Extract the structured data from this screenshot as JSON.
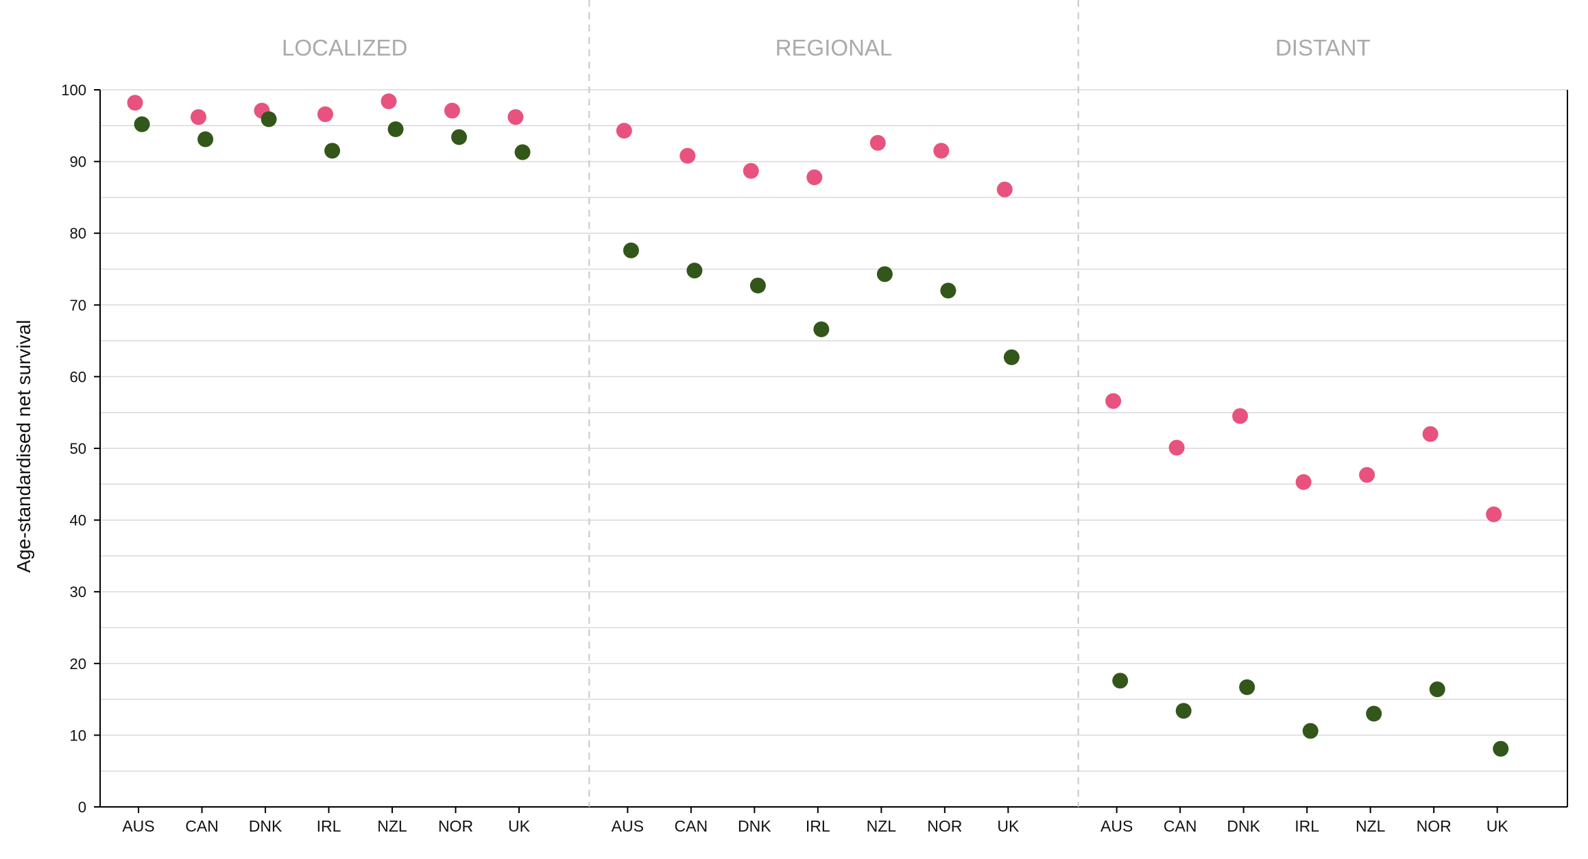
{
  "chart_data": {
    "type": "scatter",
    "ylabel": "Age-standardised net survival",
    "ylim": [
      0,
      100
    ],
    "yticks": [
      0,
      10,
      20,
      30,
      40,
      50,
      60,
      70,
      80,
      90,
      100
    ],
    "grid": true,
    "categories": [
      "AUS",
      "CAN",
      "DNK",
      "IRL",
      "NZL",
      "NOR",
      "UK"
    ],
    "colors": {
      "pink": "#e8527f",
      "green": "#33561a"
    },
    "panels": [
      {
        "title": "LOCALIZED",
        "series": [
          {
            "color": "pink",
            "values": [
              98.2,
              96.2,
              97.1,
              96.6,
              98.4,
              97.1,
              96.2
            ]
          },
          {
            "color": "green",
            "values": [
              95.2,
              93.1,
              95.9,
              91.5,
              94.5,
              93.4,
              91.3
            ]
          }
        ]
      },
      {
        "title": "REGIONAL",
        "series": [
          {
            "color": "pink",
            "values": [
              94.3,
              90.8,
              88.7,
              87.8,
              92.6,
              91.5,
              86.1
            ]
          },
          {
            "color": "green",
            "values": [
              77.6,
              74.8,
              72.7,
              66.6,
              74.3,
              72.0,
              62.7
            ]
          }
        ]
      },
      {
        "title": "DISTANT",
        "series": [
          {
            "color": "pink",
            "values": [
              56.6,
              50.1,
              54.5,
              45.3,
              46.3,
              52.0,
              40.8
            ]
          },
          {
            "color": "green",
            "values": [
              17.6,
              13.4,
              16.7,
              10.6,
              13.0,
              16.4,
              8.1
            ]
          }
        ]
      }
    ]
  }
}
